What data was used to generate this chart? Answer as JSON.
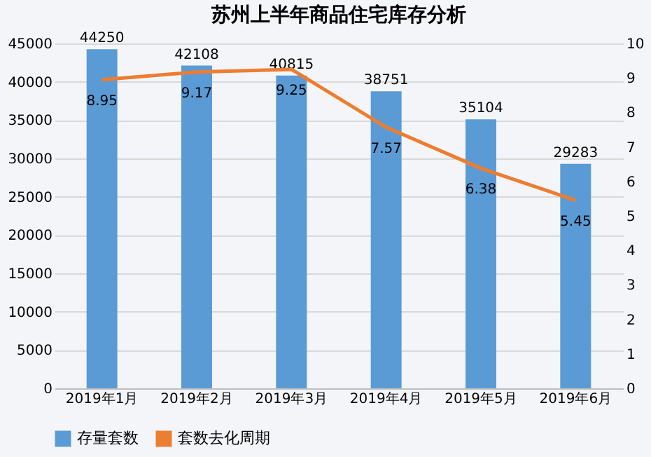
{
  "chart_data": {
    "type": "bar",
    "title": "苏州上半年商品住宅库存分析",
    "categories": [
      "2019年1月",
      "2019年2月",
      "2019年3月",
      "2019年4月",
      "2019年5月",
      "2019年6月"
    ],
    "series": [
      {
        "name": "存量套数",
        "color": "#5b9bd5",
        "values": [
          44250,
          42108,
          40815,
          38751,
          35104,
          29283
        ]
      },
      {
        "name": "套数去化周期",
        "type": "line",
        "axis": "y2",
        "color": "#ed7d31",
        "values": [
          8.95,
          9.17,
          9.25,
          7.57,
          6.38,
          5.45
        ]
      }
    ],
    "ylim": [
      0,
      45000
    ],
    "yticks": [
      0,
      5000,
      10000,
      15000,
      20000,
      25000,
      30000,
      35000,
      40000,
      45000
    ],
    "y2lim": [
      0,
      10
    ],
    "y2ticks": [
      0,
      1,
      2,
      3,
      4,
      5,
      6,
      7,
      8,
      9,
      10
    ],
    "data_labels": true,
    "grid": "y",
    "legend": "bottom",
    "marker": "none",
    "line_style": "solid"
  }
}
